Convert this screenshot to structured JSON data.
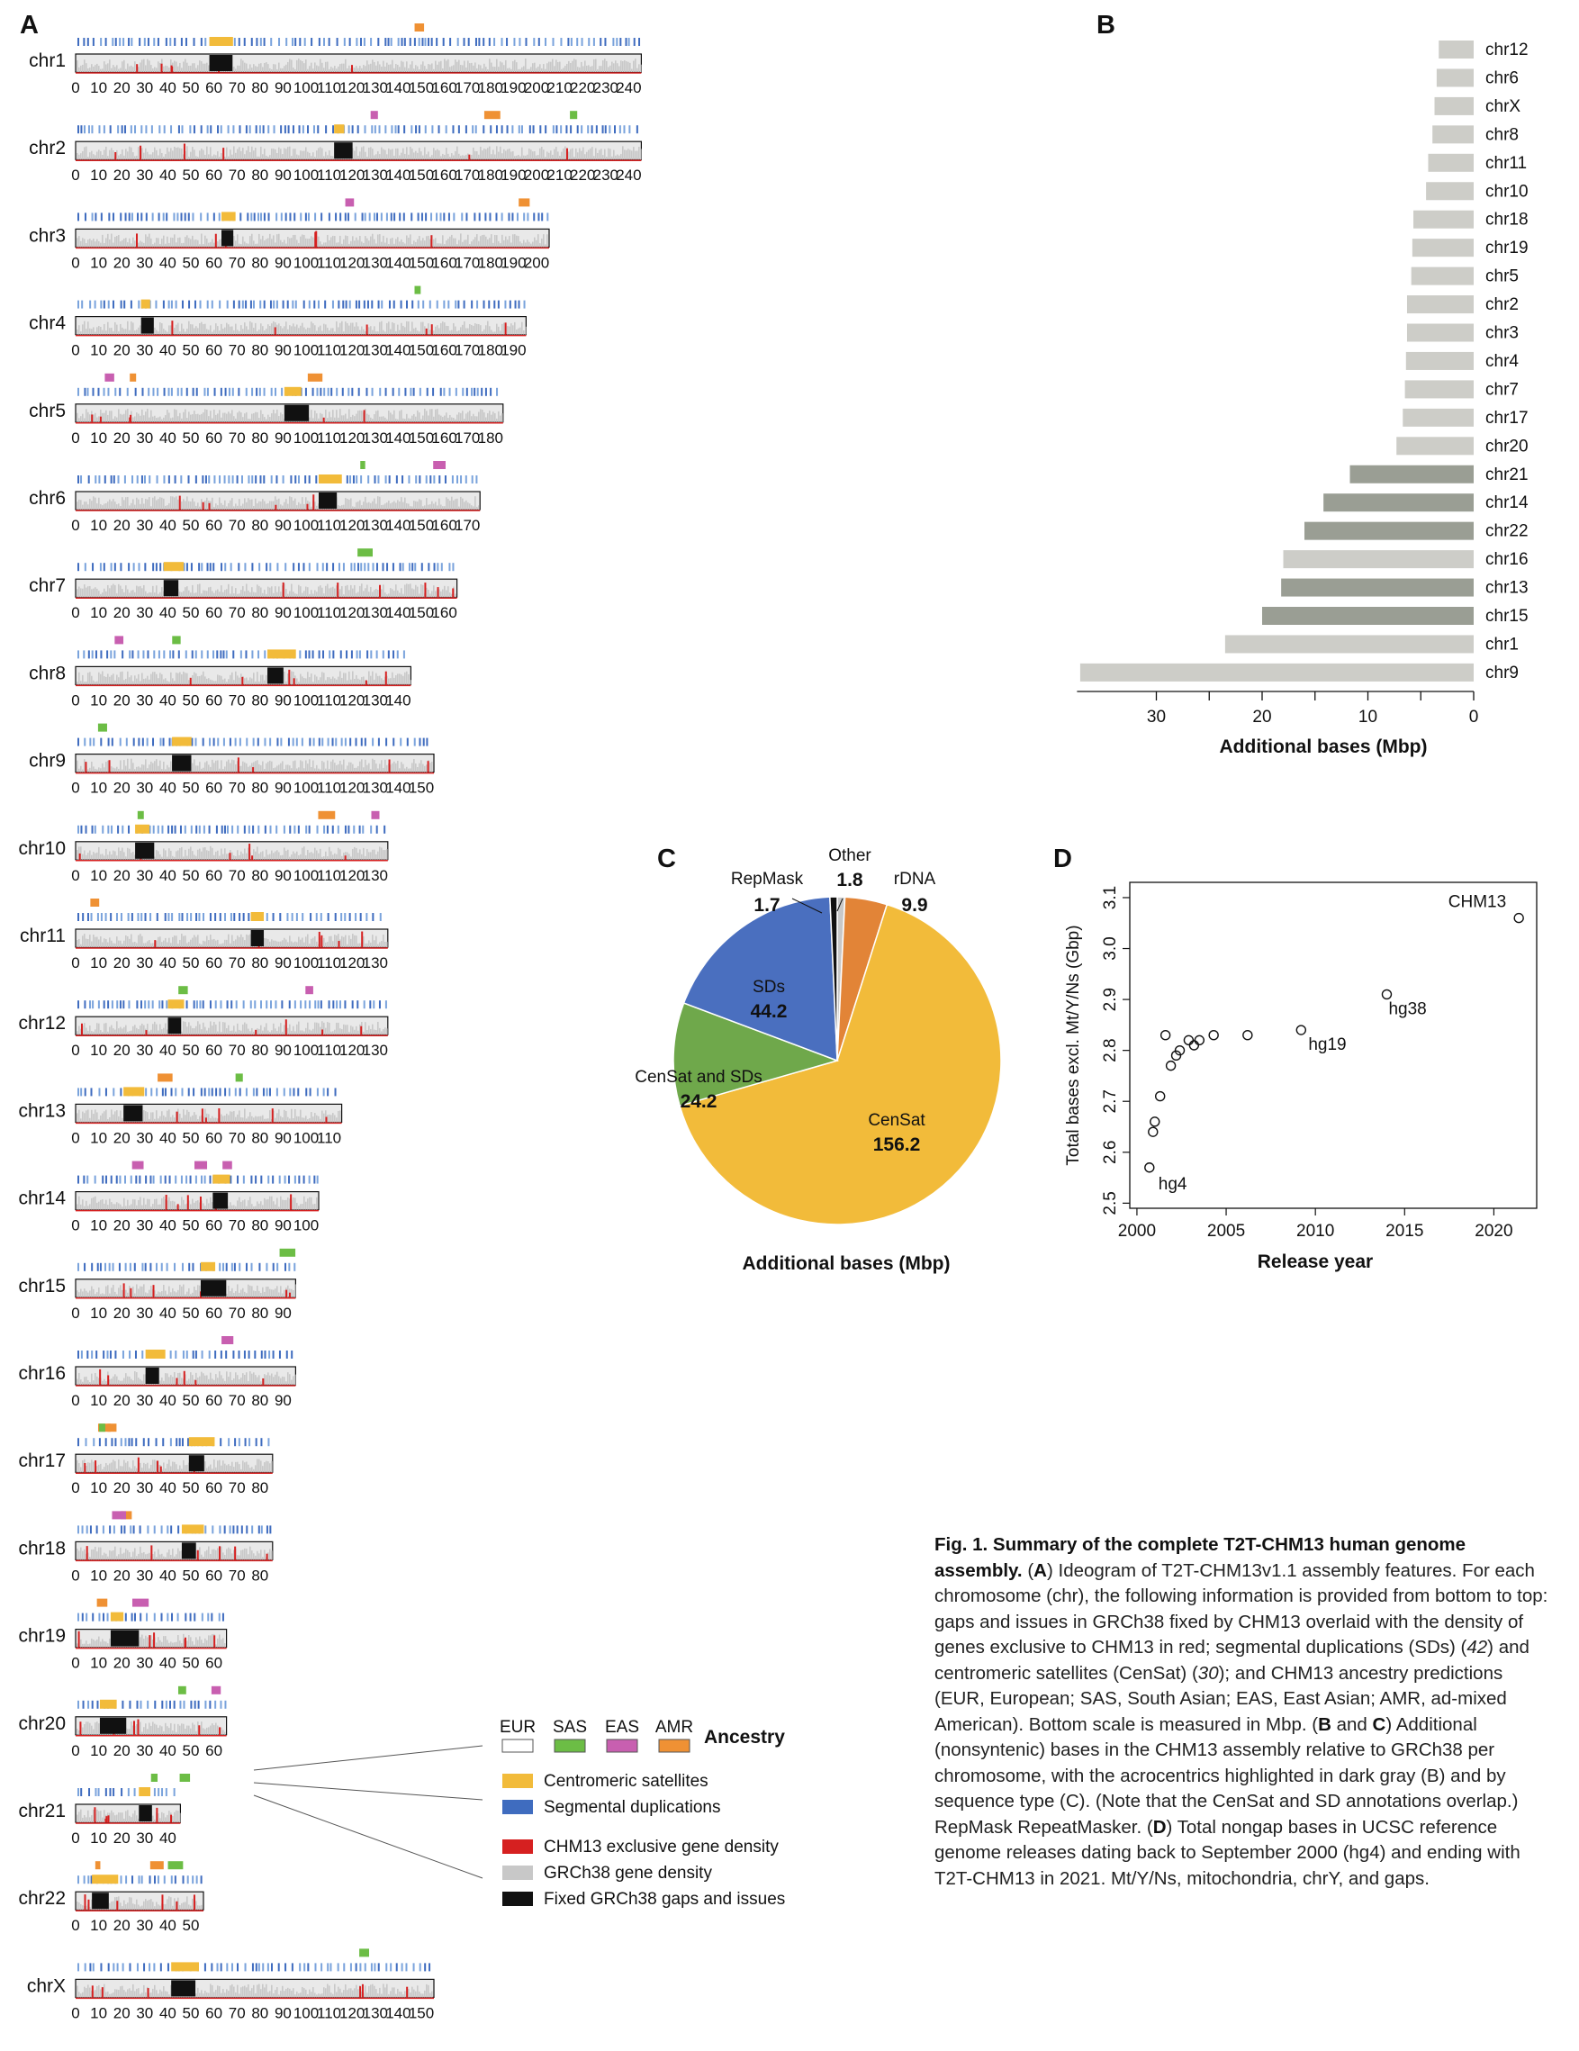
{
  "panels": {
    "a": "A",
    "b": "B",
    "c": "C",
    "d": "D"
  },
  "ideogram": {
    "chromosomes": [
      {
        "name": "chr1",
        "ticks": [
          "0",
          "10",
          "20",
          "30",
          "40",
          "50",
          "60",
          "70",
          "80",
          "90",
          "100",
          "110",
          "120",
          "130",
          "140",
          "150",
          "160",
          "170",
          "180",
          "190",
          "200",
          "210",
          "220",
          "230",
          "240"
        ]
      },
      {
        "name": "chr2",
        "ticks": [
          "0",
          "10",
          "20",
          "30",
          "40",
          "50",
          "60",
          "70",
          "80",
          "90",
          "100",
          "110",
          "120",
          "130",
          "140",
          "150",
          "160",
          "170",
          "180",
          "190",
          "200",
          "210",
          "220",
          "230",
          "240"
        ]
      },
      {
        "name": "chr3",
        "ticks": [
          "0",
          "10",
          "20",
          "30",
          "40",
          "50",
          "60",
          "70",
          "80",
          "90",
          "100",
          "110",
          "120",
          "130",
          "140",
          "150",
          "160",
          "170",
          "180",
          "190",
          "200"
        ]
      },
      {
        "name": "chr4",
        "ticks": [
          "0",
          "10",
          "20",
          "30",
          "40",
          "50",
          "60",
          "70",
          "80",
          "90",
          "100",
          "110",
          "120",
          "130",
          "140",
          "150",
          "160",
          "170",
          "180",
          "190"
        ]
      },
      {
        "name": "chr5",
        "ticks": [
          "0",
          "10",
          "20",
          "30",
          "40",
          "50",
          "60",
          "70",
          "80",
          "90",
          "100",
          "110",
          "120",
          "130",
          "140",
          "150",
          "160",
          "170",
          "180"
        ]
      },
      {
        "name": "chr6",
        "ticks": [
          "0",
          "10",
          "20",
          "30",
          "40",
          "50",
          "60",
          "70",
          "80",
          "90",
          "100",
          "110",
          "120",
          "130",
          "140",
          "150",
          "160",
          "170"
        ]
      },
      {
        "name": "chr7",
        "ticks": [
          "0",
          "10",
          "20",
          "30",
          "40",
          "50",
          "60",
          "70",
          "80",
          "90",
          "100",
          "110",
          "120",
          "130",
          "140",
          "150",
          "160"
        ]
      },
      {
        "name": "chr8",
        "ticks": [
          "0",
          "10",
          "20",
          "30",
          "40",
          "50",
          "60",
          "70",
          "80",
          "90",
          "100",
          "110",
          "120",
          "130",
          "140"
        ]
      },
      {
        "name": "chr9",
        "ticks": [
          "0",
          "10",
          "20",
          "30",
          "40",
          "50",
          "60",
          "70",
          "80",
          "90",
          "100",
          "110",
          "120",
          "130",
          "140",
          "150"
        ]
      },
      {
        "name": "chr10",
        "ticks": [
          "0",
          "10",
          "20",
          "30",
          "40",
          "50",
          "60",
          "70",
          "80",
          "90",
          "100",
          "110",
          "120",
          "130"
        ]
      },
      {
        "name": "chr11",
        "ticks": [
          "0",
          "10",
          "20",
          "30",
          "40",
          "50",
          "60",
          "70",
          "80",
          "90",
          "100",
          "110",
          "120",
          "130"
        ]
      },
      {
        "name": "chr12",
        "ticks": [
          "0",
          "10",
          "20",
          "30",
          "40",
          "50",
          "60",
          "70",
          "80",
          "90",
          "100",
          "110",
          "120",
          "130"
        ]
      },
      {
        "name": "chr13",
        "ticks": [
          "0",
          "10",
          "20",
          "30",
          "40",
          "50",
          "60",
          "70",
          "80",
          "90",
          "100",
          "110"
        ]
      },
      {
        "name": "chr14",
        "ticks": [
          "0",
          "10",
          "20",
          "30",
          "40",
          "50",
          "60",
          "70",
          "80",
          "90",
          "100"
        ]
      },
      {
        "name": "chr15",
        "ticks": [
          "0",
          "10",
          "20",
          "30",
          "40",
          "50",
          "60",
          "70",
          "80",
          "90"
        ]
      },
      {
        "name": "chr16",
        "ticks": [
          "0",
          "10",
          "20",
          "30",
          "40",
          "50",
          "60",
          "70",
          "80",
          "90"
        ]
      },
      {
        "name": "chr17",
        "ticks": [
          "0",
          "10",
          "20",
          "30",
          "40",
          "50",
          "60",
          "70",
          "80"
        ]
      },
      {
        "name": "chr18",
        "ticks": [
          "0",
          "10",
          "20",
          "30",
          "40",
          "50",
          "60",
          "70",
          "80"
        ]
      },
      {
        "name": "chr19",
        "ticks": [
          "0",
          "10",
          "20",
          "30",
          "40",
          "50",
          "60"
        ]
      },
      {
        "name": "chr20",
        "ticks": [
          "0",
          "10",
          "20",
          "30",
          "40",
          "50",
          "60"
        ]
      },
      {
        "name": "chr21",
        "ticks": [
          "0",
          "10",
          "20",
          "30",
          "40"
        ]
      },
      {
        "name": "chr22",
        "ticks": [
          "0",
          "10",
          "20",
          "30",
          "40",
          "50"
        ]
      },
      {
        "name": "chrX",
        "ticks": [
          "0",
          "10",
          "20",
          "30",
          "40",
          "50",
          "60",
          "70",
          "80",
          "90",
          "100",
          "110",
          "120",
          "130",
          "140",
          "150"
        ]
      }
    ],
    "legend": {
      "ancestry_title": "Ancestry",
      "ancestry": [
        {
          "label": "EUR",
          "color": "#ffffff"
        },
        {
          "label": "SAS",
          "color": "#6cbd45"
        },
        {
          "label": "EAS",
          "color": "#c85fb0"
        },
        {
          "label": "AMR",
          "color": "#ef9134"
        }
      ],
      "tracks": [
        {
          "label": "Centromeric satellites",
          "color": "#f2bb3a"
        },
        {
          "label": "Segmental duplications",
          "color": "#3f6cbf"
        },
        {
          "label": "CHM13 exclusive gene density",
          "color": "#d62020"
        },
        {
          "label": "GRCh38 gene density",
          "color": "#c8c8c8"
        },
        {
          "label": "Fixed GRCh38 gaps and issues",
          "color": "#111111"
        }
      ]
    }
  },
  "chart_data": [
    {
      "type": "bar",
      "orientation": "horizontal",
      "categories": [
        "chr12",
        "chr6",
        "chrX",
        "chr8",
        "chr11",
        "chr10",
        "chr18",
        "chr19",
        "chr5",
        "chr2",
        "chr3",
        "chr4",
        "chr7",
        "chr17",
        "chr20",
        "chr21",
        "chr14",
        "chr22",
        "chr16",
        "chr13",
        "chr15",
        "chr1",
        "chr9"
      ],
      "values": [
        3.3,
        3.5,
        3.7,
        3.9,
        4.3,
        4.5,
        5.7,
        5.8,
        5.9,
        6.3,
        6.3,
        6.4,
        6.5,
        6.7,
        7.3,
        11.7,
        14.2,
        16.0,
        18.0,
        18.2,
        20.0,
        23.5,
        37.2
      ],
      "acrocentric": [
        "chr21",
        "chr14",
        "chr22",
        "chr13",
        "chr15"
      ],
      "colors": {
        "default": "#cdcdc8",
        "acrocentric": "#9a9e94"
      },
      "xlabel": "Additional bases (Mbp)",
      "xticks": [
        "30",
        "20",
        "10",
        "0"
      ],
      "xlim": [
        0,
        37.5
      ],
      "direction": "reversed"
    },
    {
      "type": "pie",
      "labels": [
        "CenSat",
        "CenSat and SDs",
        "SDs",
        "RepMask",
        "Other",
        "rDNA"
      ],
      "values": [
        156.2,
        24.2,
        44.2,
        1.7,
        1.8,
        9.9
      ],
      "value_labels": [
        "156.2",
        "24.2",
        "44.2",
        "1.7",
        "1.8",
        "9.9"
      ],
      "colors": [
        "#f2bb3a",
        "#6fa84b",
        "#4a6fbf",
        "#111111",
        "#c8c8c8",
        "#e28437"
      ],
      "xlabel": "Additional bases (Mbp)"
    },
    {
      "type": "scatter",
      "x": [
        2000.7,
        2000.9,
        2001.0,
        2001.3,
        2001.6,
        2001.9,
        2002.2,
        2002.4,
        2002.9,
        2003.2,
        2003.5,
        2004.3,
        2006.2,
        2009.2,
        2014.0,
        2021.4
      ],
      "y": [
        2.57,
        2.64,
        2.66,
        2.71,
        2.83,
        2.77,
        2.79,
        2.8,
        2.82,
        2.81,
        2.82,
        2.83,
        2.83,
        2.84,
        2.91,
        3.06
      ],
      "point_labels": [
        {
          "index": 0,
          "text": "hg4"
        },
        {
          "index": 13,
          "text": "hg19"
        },
        {
          "index": 14,
          "text": "hg38"
        },
        {
          "index": 15,
          "text": "CHM13"
        }
      ],
      "xlabel": "Release year",
      "ylabel": "Total bases excl. Mt/Y/Ns (Gbp)",
      "xticks": [
        "2000",
        "2005",
        "2010",
        "2015",
        "2020"
      ],
      "yticks": [
        "2.5",
        "2.6",
        "2.7",
        "2.8",
        "2.9",
        "3.0",
        "3.1"
      ],
      "xlim": [
        1999.6,
        2022.4
      ],
      "ylim": [
        2.49,
        3.13
      ]
    }
  ],
  "caption": {
    "title": "Fig. 1. Summary of the complete T2T-CHM13 human genome assembly.",
    "segments": [
      {
        "t": " (",
        "b": false
      },
      {
        "t": "A",
        "b": true
      },
      {
        "t": ") Ideogram of T2T-CHM13v1.1 assembly features. For each chromosome (chr), the following information is provided from bottom to top: gaps and issues in GRCh38 fixed by CHM13 overlaid with the density of genes exclusive to CHM13 in red; segmental duplications (SDs) (",
        "b": false
      },
      {
        "t": "42",
        "b": false,
        "i": true
      },
      {
        "t": ") and centromeric satellites (CenSat) (",
        "b": false
      },
      {
        "t": "30",
        "b": false,
        "i": true
      },
      {
        "t": "); and CHM13 ancestry predictions (EUR, European; SAS, South Asian; EAS, East Asian; AMR, ad-mixed American). Bottom scale is measured in Mbp. (",
        "b": false
      },
      {
        "t": "B",
        "b": true
      },
      {
        "t": " and ",
        "b": false
      },
      {
        "t": "C",
        "b": true
      },
      {
        "t": ") Additional (nonsyntenic) bases in the CHM13 assembly relative to GRCh38 per chromosome, with the acrocentrics highlighted in dark gray (B) and by sequence type (C). (Note that the CenSat and SD annotations overlap.) RepMask RepeatMasker. (",
        "b": false
      },
      {
        "t": "D",
        "b": true
      },
      {
        "t": ") Total nongap bases in UCSC reference genome releases dating back to September 2000 (hg4) and ending with T2T-CHM13 in 2021. Mt/Y/Ns, mitochondria, chrY, and gaps.",
        "b": false
      }
    ]
  }
}
